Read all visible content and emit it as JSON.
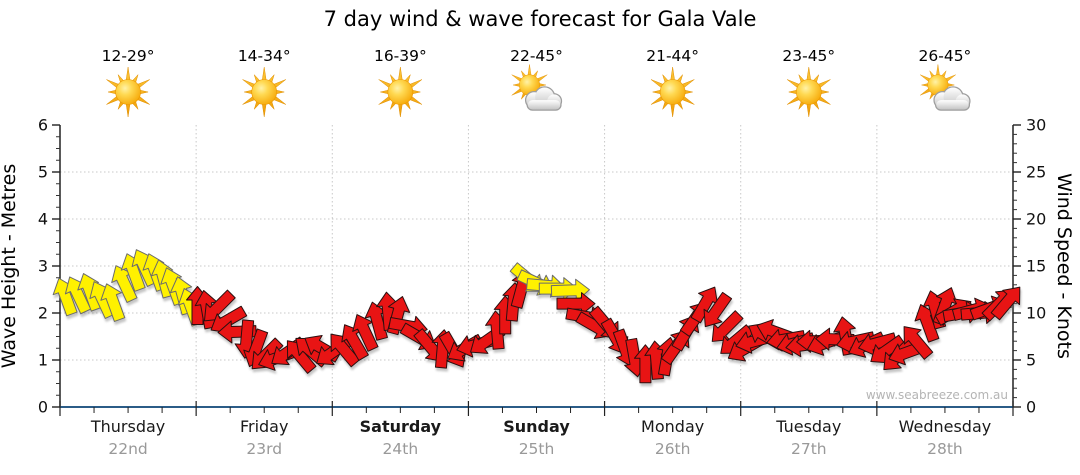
{
  "chart_data": {
    "type": "wind-arrow-forecast",
    "title": "7 day wind & wave forecast for Gala Vale",
    "watermark": "www.seabreeze.com.au",
    "grid": true,
    "left_axis": {
      "label": "Wave Height - Metres",
      "min": 0,
      "max": 6,
      "major_tick_step": 1,
      "minor_tick_step": 0.25
    },
    "right_axis": {
      "label": "Wind Speed - Knots",
      "min": 0,
      "max": 30,
      "major_tick_step": 5,
      "minor_tick_step": 1
    },
    "days": [
      {
        "name": "Thursday",
        "date": "22nd",
        "temp": "12-29°",
        "icon": "sunny",
        "bold": false
      },
      {
        "name": "Friday",
        "date": "23rd",
        "temp": "14-34°",
        "icon": "sunny",
        "bold": false
      },
      {
        "name": "Saturday",
        "date": "24th",
        "temp": "16-39°",
        "icon": "sunny",
        "bold": true
      },
      {
        "name": "Sunday",
        "date": "25th",
        "temp": "22-45°",
        "icon": "partly-cloudy",
        "bold": true
      },
      {
        "name": "Monday",
        "date": "26th",
        "temp": "21-44°",
        "icon": "sunny",
        "bold": false
      },
      {
        "name": "Tuesday",
        "date": "27th",
        "temp": "23-45°",
        "icon": "sunny",
        "bold": false
      },
      {
        "name": "Wednesday",
        "date": "28th",
        "temp": "26-45°",
        "icon": "partly-cloudy",
        "bold": false
      }
    ],
    "arrows_format": [
      "day_offset_0to7",
      "wind_speed_knots",
      "direction_deg_0_up_clockwise",
      "color_code_y_or_r"
    ],
    "arrows": [
      [
        0.04,
        11.8,
        -20,
        "y"
      ],
      [
        0.13,
        12.0,
        -25,
        "y"
      ],
      [
        0.22,
        12.3,
        -20,
        "y"
      ],
      [
        0.31,
        11.5,
        -25,
        "y"
      ],
      [
        0.39,
        11.2,
        -20,
        "y"
      ],
      [
        0.47,
        13.2,
        -25,
        "y"
      ],
      [
        0.54,
        14.4,
        -20,
        "y"
      ],
      [
        0.62,
        14.9,
        -25,
        "y"
      ],
      [
        0.7,
        14.4,
        -20,
        "y"
      ],
      [
        0.76,
        13.7,
        -15,
        "y"
      ],
      [
        0.83,
        12.9,
        -20,
        "y"
      ],
      [
        0.9,
        11.9,
        -15,
        "y"
      ],
      [
        0.96,
        10.7,
        -20,
        "y"
      ],
      [
        1.01,
        10.8,
        0,
        "r"
      ],
      [
        1.08,
        10.4,
        -10,
        "r"
      ],
      [
        1.16,
        10.6,
        225,
        "r"
      ],
      [
        1.23,
        9.2,
        240,
        "r"
      ],
      [
        1.3,
        8.0,
        268,
        "r"
      ],
      [
        1.37,
        7.2,
        185,
        "r"
      ],
      [
        1.44,
        6.2,
        200,
        "r"
      ],
      [
        1.51,
        5.5,
        225,
        "r"
      ],
      [
        1.59,
        5.2,
        250,
        "r"
      ],
      [
        1.67,
        5.8,
        235,
        "r"
      ],
      [
        1.76,
        5.5,
        320,
        "r"
      ],
      [
        1.84,
        6.0,
        310,
        "r"
      ],
      [
        1.92,
        6.3,
        300,
        "r"
      ],
      [
        2.0,
        5.8,
        235,
        "r"
      ],
      [
        2.08,
        6.2,
        320,
        "r"
      ],
      [
        2.16,
        7.0,
        330,
        "r"
      ],
      [
        2.24,
        8.0,
        335,
        "r"
      ],
      [
        2.33,
        9.2,
        345,
        "r"
      ],
      [
        2.41,
        10.2,
        355,
        "r"
      ],
      [
        2.48,
        9.8,
        15,
        "r"
      ],
      [
        2.56,
        8.6,
        100,
        "r"
      ],
      [
        2.64,
        7.4,
        120,
        "r"
      ],
      [
        2.72,
        6.4,
        140,
        "r"
      ],
      [
        2.81,
        6.2,
        5,
        "r"
      ],
      [
        2.89,
        6.0,
        150,
        "r"
      ],
      [
        2.97,
        6.2,
        240,
        "r"
      ],
      [
        3.05,
        6.6,
        255,
        "r"
      ],
      [
        3.13,
        7.0,
        235,
        "r"
      ],
      [
        3.21,
        8.2,
        355,
        "r"
      ],
      [
        3.27,
        9.8,
        0,
        "r"
      ],
      [
        3.33,
        11.2,
        5,
        "r"
      ],
      [
        3.39,
        12.6,
        15,
        "r"
      ],
      [
        3.44,
        13.6,
        130,
        "y"
      ],
      [
        3.5,
        13.2,
        115,
        "y"
      ],
      [
        3.57,
        12.9,
        95,
        "y"
      ],
      [
        3.66,
        12.6,
        90,
        "y"
      ],
      [
        3.75,
        12.4,
        88,
        "y"
      ],
      [
        3.79,
        11.0,
        90,
        "r"
      ],
      [
        3.86,
        9.6,
        100,
        "r"
      ],
      [
        3.93,
        8.6,
        120,
        "r"
      ],
      [
        4.01,
        8.8,
        140,
        "r"
      ],
      [
        4.08,
        7.4,
        150,
        "r"
      ],
      [
        4.15,
        6.2,
        160,
        "r"
      ],
      [
        4.22,
        5.2,
        170,
        "r"
      ],
      [
        4.3,
        4.6,
        0,
        "r"
      ],
      [
        4.38,
        5.0,
        355,
        "r"
      ],
      [
        4.46,
        5.4,
        10,
        "r"
      ],
      [
        4.53,
        6.5,
        35,
        "r"
      ],
      [
        4.6,
        8.0,
        30,
        "r"
      ],
      [
        4.67,
        9.5,
        35,
        "r"
      ],
      [
        4.74,
        11.0,
        30,
        "r"
      ],
      [
        4.82,
        10.2,
        215,
        "r"
      ],
      [
        4.89,
        8.4,
        225,
        "r"
      ],
      [
        4.96,
        7.0,
        230,
        "r"
      ],
      [
        5.03,
        6.2,
        240,
        "r"
      ],
      [
        5.1,
        7.0,
        255,
        "r"
      ],
      [
        5.18,
        7.6,
        300,
        "r"
      ],
      [
        5.25,
        8.0,
        290,
        "r"
      ],
      [
        5.33,
        7.2,
        260,
        "r"
      ],
      [
        5.4,
        6.8,
        255,
        "r"
      ],
      [
        5.47,
        6.6,
        262,
        "r"
      ],
      [
        5.55,
        7.0,
        268,
        "r"
      ],
      [
        5.62,
        6.8,
        250,
        "r"
      ],
      [
        5.69,
        7.2,
        272,
        "r"
      ],
      [
        5.77,
        7.6,
        350,
        "r"
      ],
      [
        5.84,
        7.0,
        258,
        "r"
      ],
      [
        5.92,
        6.6,
        245,
        "r"
      ],
      [
        6.0,
        6.8,
        255,
        "r"
      ],
      [
        6.07,
        6.0,
        235,
        "r"
      ],
      [
        6.15,
        5.4,
        225,
        "r"
      ],
      [
        6.22,
        5.8,
        250,
        "r"
      ],
      [
        6.29,
        7.0,
        320,
        "r"
      ],
      [
        6.37,
        9.0,
        340,
        "r"
      ],
      [
        6.43,
        10.4,
        345,
        "r"
      ],
      [
        6.5,
        10.8,
        20,
        "r"
      ],
      [
        6.57,
        10.2,
        60,
        "r"
      ],
      [
        6.63,
        10.0,
        80,
        "r"
      ],
      [
        6.7,
        10.3,
        75,
        "r"
      ],
      [
        6.76,
        10.0,
        85,
        "r"
      ],
      [
        6.83,
        10.5,
        70,
        "r"
      ],
      [
        6.9,
        11.0,
        45,
        "r"
      ],
      [
        6.96,
        11.2,
        40,
        "r"
      ]
    ],
    "colors": {
      "arrow_yellow": "#FFF100",
      "arrow_red": "#E81414",
      "bottom_axis": "#2B5C87",
      "gridline": "#C8C8C8",
      "date_text": "#999999",
      "tick_text": "#111111"
    }
  }
}
